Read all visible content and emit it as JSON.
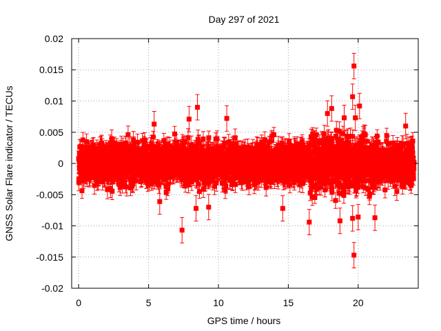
{
  "chart_data": {
    "type": "scatter",
    "title": "Day 297 of 2021",
    "xlabel": "GPS time / hours",
    "ylabel": "GNSS Solar Flare indicator / TECUs",
    "xlim": [
      -0.5,
      24.3
    ],
    "ylim": [
      -0.02,
      0.02
    ],
    "xticks": [
      0,
      5,
      10,
      15,
      20
    ],
    "yticks": [
      -0.02,
      -0.015,
      -0.01,
      -0.005,
      0,
      0.005,
      0.01,
      0.015,
      0.02
    ],
    "xtick_labels": [
      "0",
      "5",
      "10",
      "15",
      "20"
    ],
    "ytick_labels": [
      "-0.02",
      "-0.015",
      "-0.01",
      "-0.005",
      "0",
      "0.005",
      "0.01",
      "0.015",
      "0.02"
    ],
    "grid": true,
    "legend": "none",
    "color": "#ff0000",
    "series": [
      {
        "x_range": [
          0,
          24
        ],
        "sample_interval_hours": 0.00833,
        "typical_abs_max": 0.005,
        "typical_error": 0.0012,
        "outliers": [
          {
            "x": 7.4,
            "y": -0.0107
          },
          {
            "x": 8.5,
            "y": 0.009
          },
          {
            "x": 7.9,
            "y": 0.0071
          },
          {
            "x": 10.6,
            "y": 0.0072
          },
          {
            "x": 5.4,
            "y": 0.0063
          },
          {
            "x": 5.8,
            "y": -0.0061
          },
          {
            "x": 8.4,
            "y": -0.0072
          },
          {
            "x": 9.3,
            "y": -0.007
          },
          {
            "x": 14.6,
            "y": -0.0072
          },
          {
            "x": 16.5,
            "y": -0.0094
          },
          {
            "x": 17.8,
            "y": 0.008
          },
          {
            "x": 18.1,
            "y": 0.0088
          },
          {
            "x": 18.7,
            "y": -0.0092
          },
          {
            "x": 19.0,
            "y": 0.0073
          },
          {
            "x": 19.6,
            "y": 0.0107
          },
          {
            "x": 19.7,
            "y": 0.0156
          },
          {
            "x": 19.8,
            "y": 0.0073
          },
          {
            "x": 19.7,
            "y": -0.0147
          },
          {
            "x": 19.6,
            "y": -0.0088
          },
          {
            "x": 20.1,
            "y": 0.0092
          },
          {
            "x": 20.0,
            "y": -0.0086
          },
          {
            "x": 21.2,
            "y": -0.0087
          },
          {
            "x": 23.4,
            "y": 0.006
          }
        ]
      }
    ]
  }
}
